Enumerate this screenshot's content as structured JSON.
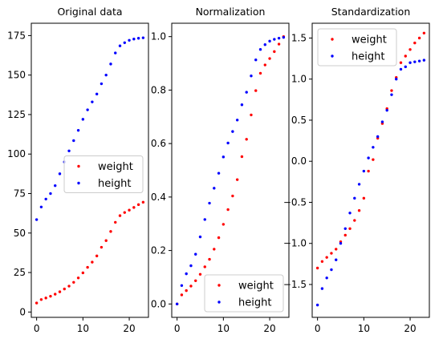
{
  "colors": {
    "weight": "#ff0000",
    "height": "#0000ff",
    "axis": "#000000",
    "background": "#ffffff"
  },
  "chart_data": [
    {
      "type": "scatter",
      "title": "Original data",
      "xlabel": "",
      "ylabel": "",
      "grid": false,
      "legend_position": "center-right",
      "xlim": [
        -1.15,
        24.15
      ],
      "ylim": [
        -3.37,
        182.81
      ],
      "xticks": [
        0,
        10,
        20
      ],
      "yticks": [
        0,
        25,
        50,
        75,
        100,
        125,
        150,
        175
      ],
      "xtick_labels": [
        "0",
        "10",
        "20"
      ],
      "ytick_labels": [
        "0",
        "25",
        "50",
        "75",
        "100",
        "125",
        "150",
        "175"
      ],
      "x": [
        0,
        1,
        2,
        3,
        4,
        5,
        6,
        7,
        8,
        9,
        10,
        11,
        12,
        13,
        14,
        15,
        16,
        17,
        18,
        19,
        20,
        21,
        22,
        23
      ],
      "series": [
        {
          "name": "weight",
          "color": "#ff0000",
          "values": [
            5.7,
            7.9,
            8.9,
            10.0,
            11.3,
            12.8,
            14.6,
            16.4,
            18.8,
            21.6,
            24.8,
            28.3,
            31.6,
            35.5,
            41.0,
            45.2,
            51.0,
            56.8,
            61.0,
            63.0,
            64.5,
            66.2,
            68.0,
            69.5
          ]
        },
        {
          "name": "height",
          "color": "#0000ff",
          "values": [
            58.5,
            66.5,
            71.5,
            75.0,
            80.0,
            87.5,
            95.0,
            102.0,
            108.5,
            115.0,
            122.0,
            128.0,
            133.0,
            138.0,
            144.5,
            150.0,
            157.0,
            164.0,
            168.5,
            170.5,
            172.0,
            172.8,
            173.3,
            173.6
          ]
        }
      ]
    },
    {
      "type": "scatter",
      "title": "Normalization",
      "xlabel": "",
      "ylabel": "",
      "grid": false,
      "legend_position": "lower-right",
      "xlim": [
        -1.15,
        24.15
      ],
      "ylim": [
        -0.05,
        1.05
      ],
      "xticks": [
        0,
        10,
        20
      ],
      "yticks": [
        0.0,
        0.2,
        0.4,
        0.6,
        0.8,
        1.0
      ],
      "xtick_labels": [
        "0",
        "10",
        "20"
      ],
      "ytick_labels": [
        "0.0",
        "0.2",
        "0.4",
        "0.6",
        "0.8",
        "1.0"
      ],
      "x": [
        0,
        1,
        2,
        3,
        4,
        5,
        6,
        7,
        8,
        9,
        10,
        11,
        12,
        13,
        14,
        15,
        16,
        17,
        18,
        19,
        20,
        21,
        22,
        23
      ],
      "series": [
        {
          "name": "weight",
          "color": "#ff0000",
          "values": [
            0.0,
            0.034,
            0.05,
            0.067,
            0.087,
            0.111,
            0.139,
            0.167,
            0.205,
            0.248,
            0.298,
            0.353,
            0.404,
            0.465,
            0.551,
            0.616,
            0.707,
            0.798,
            0.863,
            0.894,
            0.918,
            0.944,
            0.972,
            1.0
          ]
        },
        {
          "name": "height",
          "color": "#0000ff",
          "values": [
            0.0,
            0.069,
            0.113,
            0.143,
            0.186,
            0.251,
            0.316,
            0.377,
            0.433,
            0.489,
            0.55,
            0.602,
            0.645,
            0.688,
            0.745,
            0.792,
            0.853,
            0.913,
            0.952,
            0.97,
            0.983,
            0.99,
            0.994,
            0.997
          ]
        }
      ]
    },
    {
      "type": "scatter",
      "title": "Standardization",
      "xlabel": "",
      "ylabel": "",
      "grid": false,
      "legend_position": "upper-left",
      "xlim": [
        -1.15,
        24.15
      ],
      "ylim": [
        -1.9,
        1.68
      ],
      "xticks": [
        0,
        10,
        20
      ],
      "yticks": [
        -1.5,
        -1.0,
        -0.5,
        0.0,
        0.5,
        1.0,
        1.5
      ],
      "xtick_labels": [
        "0",
        "10",
        "20"
      ],
      "ytick_labels": [
        "−1.5",
        "−1.0",
        "−0.5",
        "0.0",
        "0.5",
        "1.0",
        "1.5"
      ],
      "x": [
        0,
        1,
        2,
        3,
        4,
        5,
        6,
        7,
        8,
        9,
        10,
        11,
        12,
        13,
        14,
        15,
        16,
        17,
        18,
        19,
        20,
        21,
        22,
        23
      ],
      "series": [
        {
          "name": "weight",
          "color": "#ff0000",
          "values": [
            -1.3,
            -1.22,
            -1.17,
            -1.12,
            -1.07,
            -0.98,
            -0.9,
            -0.82,
            -0.72,
            -0.6,
            -0.45,
            -0.12,
            0.02,
            0.28,
            0.46,
            0.64,
            0.86,
            1.02,
            1.2,
            1.28,
            1.36,
            1.44,
            1.5,
            1.56
          ]
        },
        {
          "name": "height",
          "color": "#0000ff",
          "values": [
            -1.75,
            -1.55,
            -1.42,
            -1.32,
            -1.2,
            -1.0,
            -0.82,
            -0.63,
            -0.45,
            -0.28,
            -0.12,
            0.04,
            0.17,
            0.3,
            0.48,
            0.62,
            0.81,
            1.0,
            1.12,
            1.15,
            1.2,
            1.21,
            1.22,
            1.23
          ]
        }
      ]
    }
  ]
}
